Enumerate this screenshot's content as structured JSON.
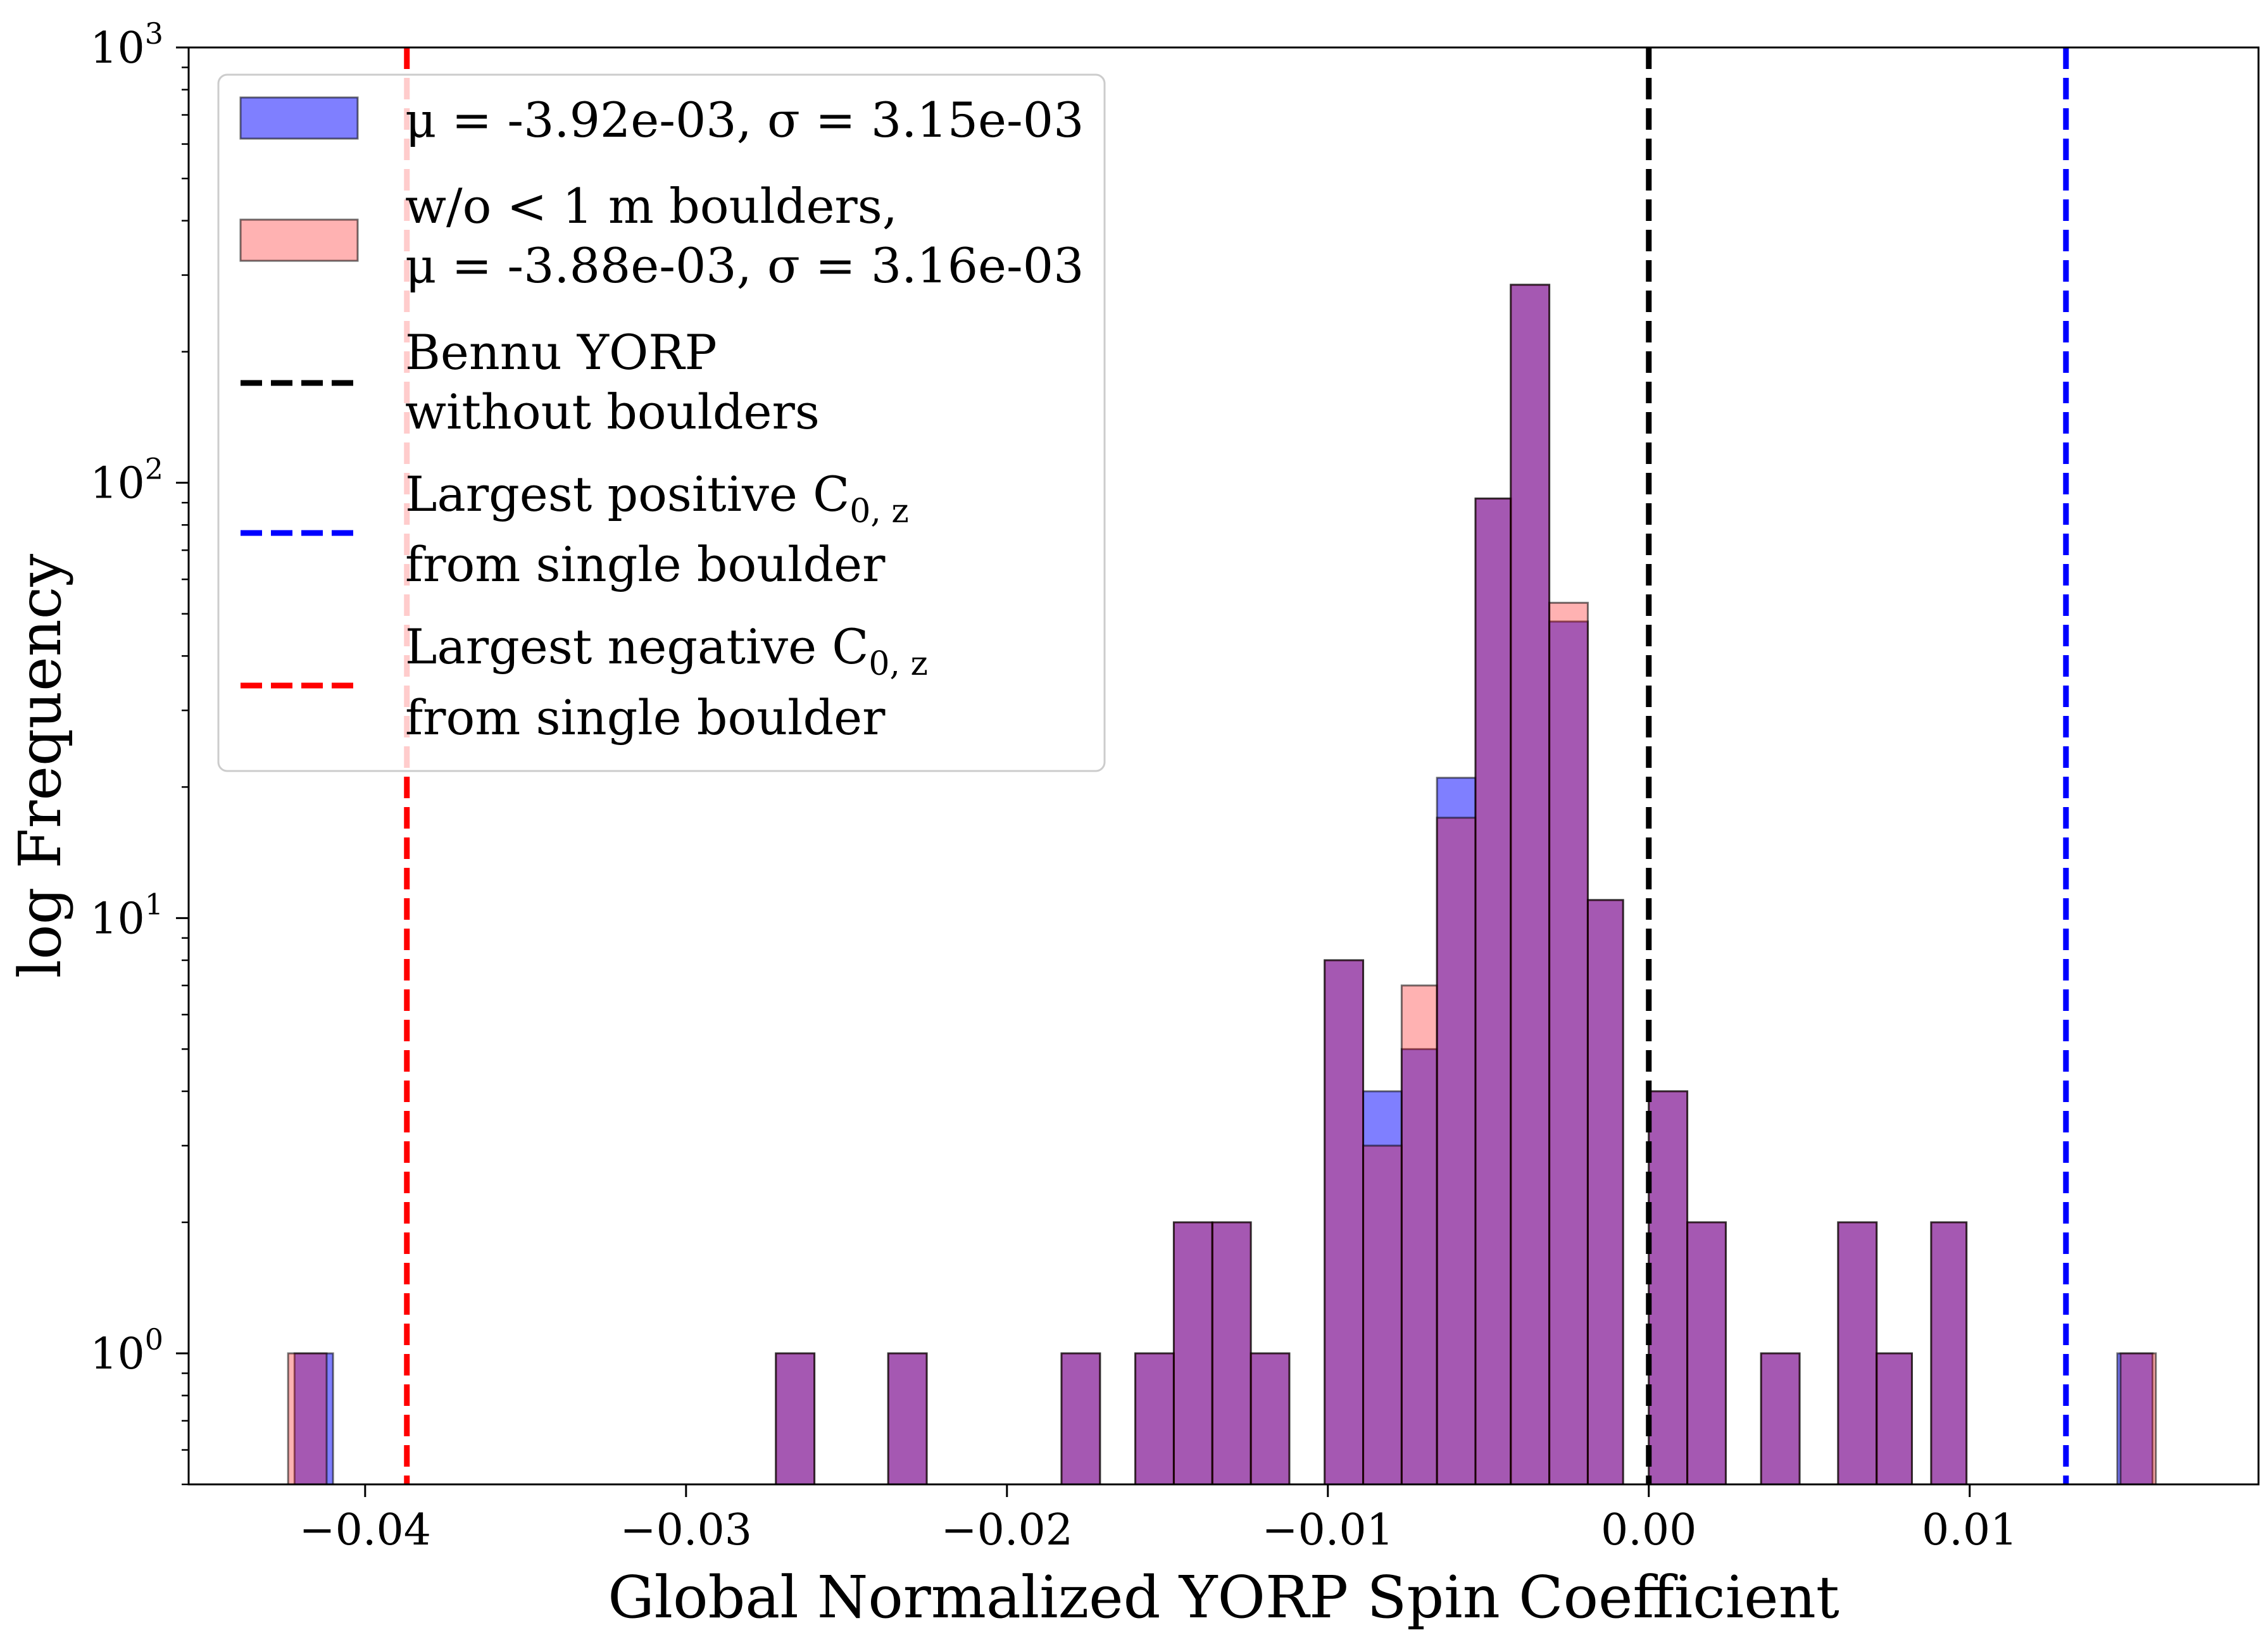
{
  "chart_data": {
    "type": "bar",
    "title": "",
    "xlabel": "Global Normalized YORP Spin Coefficient",
    "ylabel": "log Frequency",
    "yscale": "log",
    "xlim": [
      -0.0455,
      0.019
    ],
    "ylim": [
      0.5,
      1000
    ],
    "grid": false,
    "legend_position": "top-left",
    "x_ticks": [
      {
        "value": -0.04,
        "label": "−0.04"
      },
      {
        "value": -0.03,
        "label": "−0.03"
      },
      {
        "value": -0.02,
        "label": "−0.02"
      },
      {
        "value": -0.01,
        "label": "−0.01"
      },
      {
        "value": 0.0,
        "label": "0.00"
      },
      {
        "value": 0.01,
        "label": "0.01"
      }
    ],
    "y_ticks": [
      {
        "value": 1,
        "base": "10",
        "exp": "0"
      },
      {
        "value": 10,
        "base": "10",
        "exp": "1"
      },
      {
        "value": 100,
        "base": "10",
        "exp": "2"
      },
      {
        "value": 1000,
        "base": "10",
        "exp": "3"
      }
    ],
    "series": [
      {
        "name": "μ = -3.92e-03, σ = 3.15e-03",
        "color": "#0000ff",
        "opacity": 0.5,
        "bins": [
          {
            "x0": -0.0422,
            "x1": -0.041,
            "count": 1
          },
          {
            "x0": -0.0272,
            "x1": -0.026,
            "count": 1
          },
          {
            "x0": -0.0237,
            "x1": -0.0225,
            "count": 1
          },
          {
            "x0": -0.0183,
            "x1": -0.0171,
            "count": 1
          },
          {
            "x0": -0.016,
            "x1": -0.0148,
            "count": 1
          },
          {
            "x0": -0.0148,
            "x1": -0.0136,
            "count": 2
          },
          {
            "x0": -0.0136,
            "x1": -0.0124,
            "count": 2
          },
          {
            "x0": -0.0124,
            "x1": -0.0112,
            "count": 1
          },
          {
            "x0": -0.0101,
            "x1": -0.0089,
            "count": 8
          },
          {
            "x0": -0.0089,
            "x1": -0.0077,
            "count": 4
          },
          {
            "x0": -0.0077,
            "x1": -0.0066,
            "count": 5
          },
          {
            "x0": -0.0066,
            "x1": -0.0054,
            "count": 21
          },
          {
            "x0": -0.0054,
            "x1": -0.0043,
            "count": 92
          },
          {
            "x0": -0.0043,
            "x1": -0.0031,
            "count": 285
          },
          {
            "x0": -0.0031,
            "x1": -0.0019,
            "count": 48
          },
          {
            "x0": -0.0019,
            "x1": -0.0008,
            "count": 11
          },
          {
            "x0": 0.0,
            "x1": 0.0012,
            "count": 4
          },
          {
            "x0": 0.0012,
            "x1": 0.0024,
            "count": 2
          },
          {
            "x0": 0.0035,
            "x1": 0.0047,
            "count": 1
          },
          {
            "x0": 0.0059,
            "x1": 0.0071,
            "count": 2
          },
          {
            "x0": 0.0071,
            "x1": 0.0082,
            "count": 1
          },
          {
            "x0": 0.0088,
            "x1": 0.0099,
            "count": 2
          },
          {
            "x0": 0.0146,
            "x1": 0.0157,
            "count": 1
          }
        ]
      },
      {
        "name": "w/o < 1 m boulders,\n μ = -3.88e-03, σ = 3.16e-03",
        "color": "#ff0000",
        "opacity": 0.3,
        "bins": [
          {
            "x0": -0.0424,
            "x1": -0.0412,
            "count": 1
          },
          {
            "x0": -0.0272,
            "x1": -0.026,
            "count": 1
          },
          {
            "x0": -0.0237,
            "x1": -0.0225,
            "count": 1
          },
          {
            "x0": -0.0183,
            "x1": -0.0171,
            "count": 1
          },
          {
            "x0": -0.016,
            "x1": -0.0148,
            "count": 1
          },
          {
            "x0": -0.0148,
            "x1": -0.0136,
            "count": 2
          },
          {
            "x0": -0.0136,
            "x1": -0.0124,
            "count": 2
          },
          {
            "x0": -0.0124,
            "x1": -0.0112,
            "count": 1
          },
          {
            "x0": -0.0101,
            "x1": -0.0089,
            "count": 8
          },
          {
            "x0": -0.0089,
            "x1": -0.0077,
            "count": 3
          },
          {
            "x0": -0.0077,
            "x1": -0.0066,
            "count": 7
          },
          {
            "x0": -0.0066,
            "x1": -0.0054,
            "count": 17
          },
          {
            "x0": -0.0054,
            "x1": -0.0043,
            "count": 92
          },
          {
            "x0": -0.0043,
            "x1": -0.0031,
            "count": 285
          },
          {
            "x0": -0.0031,
            "x1": -0.0019,
            "count": 53
          },
          {
            "x0": -0.0019,
            "x1": -0.0008,
            "count": 11
          },
          {
            "x0": 0.0,
            "x1": 0.0012,
            "count": 4
          },
          {
            "x0": 0.0012,
            "x1": 0.0024,
            "count": 2
          },
          {
            "x0": 0.0035,
            "x1": 0.0047,
            "count": 1
          },
          {
            "x0": 0.0059,
            "x1": 0.0071,
            "count": 2
          },
          {
            "x0": 0.0071,
            "x1": 0.0082,
            "count": 1
          },
          {
            "x0": 0.0088,
            "x1": 0.0099,
            "count": 2
          },
          {
            "x0": 0.0147,
            "x1": 0.0158,
            "count": 1
          }
        ]
      }
    ],
    "vlines": [
      {
        "name": "Bennu YORP\nwithout boulders",
        "x": 0.0,
        "color": "#000000"
      },
      {
        "name": "Largest positive C",
        "sub": "0, z",
        "name2": "from single boulder",
        "x": 0.013,
        "color": "#0000ff"
      },
      {
        "name": "Largest negative C",
        "sub": "0, z",
        "name2": "from single boulder",
        "x": -0.0387,
        "color": "#ff0000"
      }
    ]
  }
}
